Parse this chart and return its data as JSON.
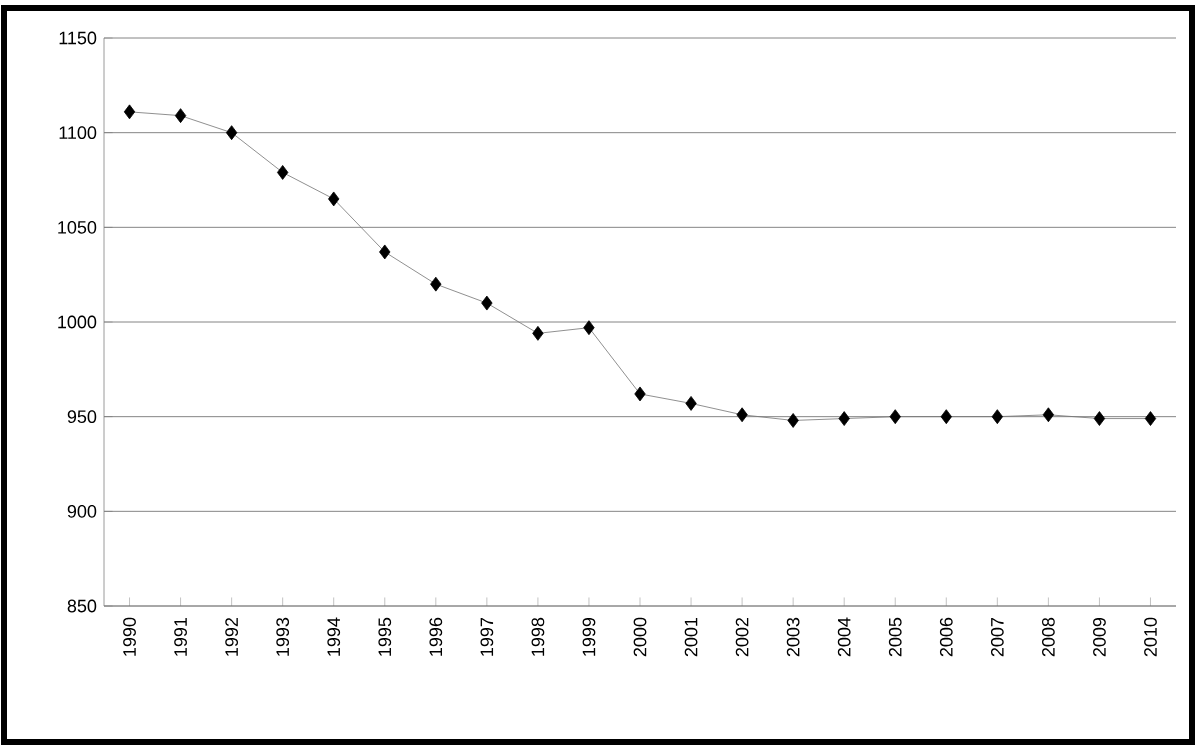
{
  "chart_data": {
    "type": "line",
    "categories": [
      "1990",
      "1991",
      "1992",
      "1993",
      "1994",
      "1995",
      "1996",
      "1997",
      "1998",
      "1999",
      "2000",
      "2001",
      "2002",
      "2003",
      "2004",
      "2005",
      "2006",
      "2007",
      "2008",
      "2009",
      "2010"
    ],
    "series": [
      {
        "color": "#000000",
        "values": [
          1111,
          1109,
          1100,
          1079,
          1065,
          1037,
          1020,
          1010,
          994,
          997,
          962,
          957,
          951,
          948,
          949,
          950,
          950,
          950,
          951,
          949,
          949
        ]
      }
    ],
    "ylim": [
      850,
      1150
    ],
    "yticks": [
      850,
      900,
      950,
      1000,
      1050,
      1100,
      1150
    ],
    "grid": "y",
    "marker": "diamond",
    "line_style": "solid"
  }
}
